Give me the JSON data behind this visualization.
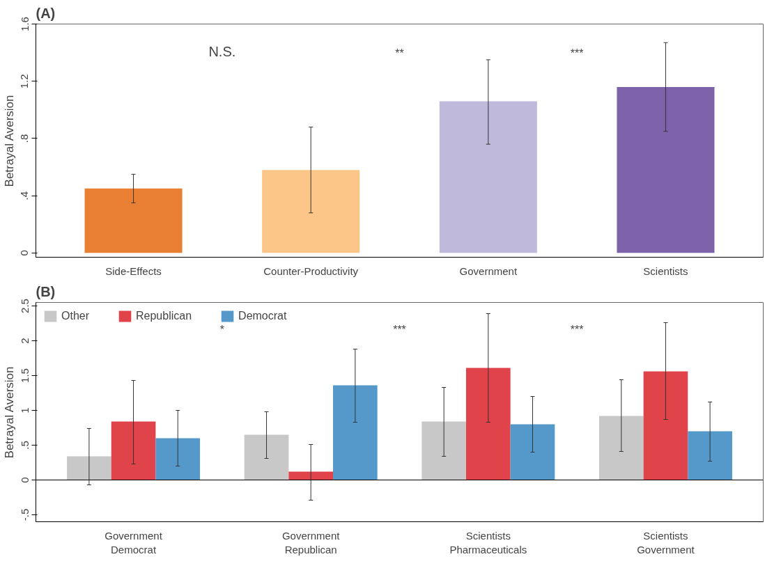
{
  "chart_data": [
    {
      "type": "bar",
      "title": "(A)",
      "ylabel": "Betrayal Aversion",
      "categories": [
        "Side-Effects",
        "Counter-Productivity",
        "Government",
        "Scientists"
      ],
      "values": [
        0.45,
        0.58,
        1.06,
        1.16
      ],
      "colors": [
        "#e97f32",
        "#fbc687",
        "#bfb9dc",
        "#7d62aa"
      ],
      "errors": [
        [
          0.35,
          0.55
        ],
        [
          0.28,
          0.88
        ],
        [
          0.76,
          1.35
        ],
        [
          0.85,
          1.47
        ]
      ],
      "ylim": [
        -0.03,
        1.6
      ],
      "yticks": [
        0,
        {
          "value": 0.4,
          "label": ".4"
        },
        {
          "value": 0.8,
          "label": ".8"
        },
        1.2,
        1.6
      ],
      "annotations": [
        "N.S.",
        "**",
        "***"
      ],
      "grid": false,
      "legend": false
    },
    {
      "type": "bar",
      "title": "(B)",
      "ylabel": "Betrayal Aversion",
      "categories": [
        "Government\nDemocrat",
        "Government\nRepublican",
        "Scientists\nPharmaceuticals",
        "Scientists\nGovernment"
      ],
      "series": [
        {
          "name": "Other",
          "color": "#c8c8c8",
          "values": [
            0.34,
            0.65,
            0.84,
            0.92
          ],
          "errors": [
            [
              -0.07,
              0.74
            ],
            [
              0.31,
              0.98
            ],
            [
              0.34,
              1.33
            ],
            [
              0.41,
              1.44
            ]
          ]
        },
        {
          "name": "Republican",
          "color": "#e0434a",
          "values": [
            0.84,
            0.12,
            1.61,
            1.56
          ],
          "errors": [
            [
              0.23,
              1.43
            ],
            [
              -0.29,
              0.51
            ],
            [
              0.83,
              2.39
            ],
            [
              0.87,
              2.26
            ]
          ]
        },
        {
          "name": "Democrat",
          "color": "#5499c9",
          "values": [
            0.6,
            1.36,
            0.8,
            0.7
          ],
          "errors": [
            [
              0.2,
              1.0
            ],
            [
              0.83,
              1.88
            ],
            [
              0.4,
              1.2
            ],
            [
              0.27,
              1.12
            ]
          ]
        }
      ],
      "ylim": [
        -0.6,
        2.55
      ],
      "yticks": [
        {
          "value": -0.5,
          "label": "-.5"
        },
        0,
        {
          "value": 0.5,
          "label": ".5"
        },
        1,
        1.5,
        2,
        2.5
      ],
      "ref_lines": [
        {
          "axis": "y",
          "value": 0
        }
      ],
      "annotations": [
        "*",
        "***",
        "***"
      ],
      "grid": false,
      "legend": "top left"
    }
  ]
}
